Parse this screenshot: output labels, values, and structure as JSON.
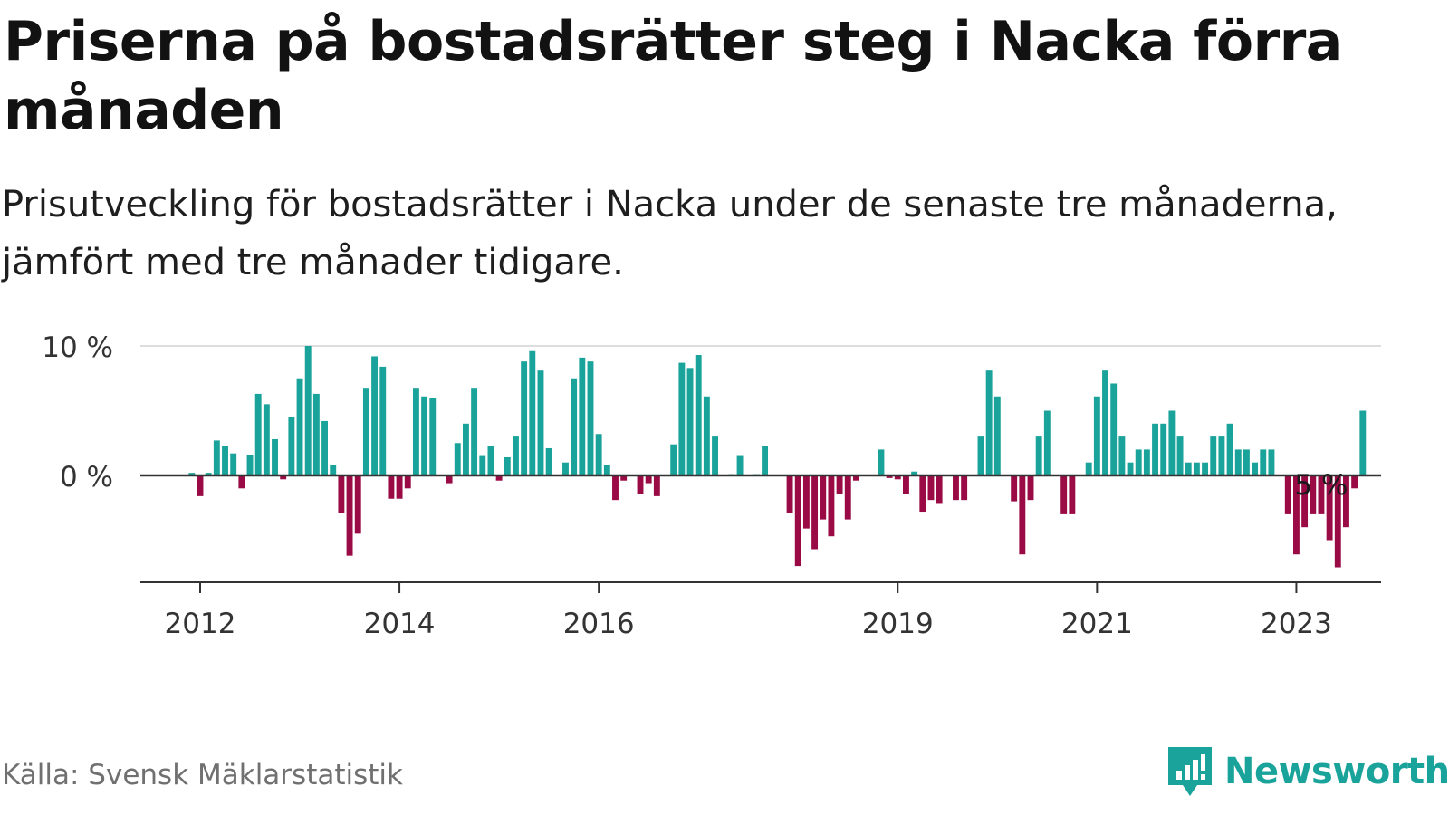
{
  "title": "Priserna på bostadsrätter steg i Nacka förra månaden",
  "subtitle": "Prisutveckling för bostadsrätter i Nacka under de senaste tre månaderna, jämfört med tre månader tidigare.",
  "source": "Källa: Svensk Mäklarstatistik",
  "brand": "Newsworthy",
  "colors": {
    "positive": "#1aa39a",
    "negative": "#9a0b46",
    "axis": "#333333",
    "grid": "#dddddd",
    "brand": "#1aa39a"
  },
  "chart_data": {
    "type": "bar",
    "title": "Priserna på bostadsrätter steg i Nacka förra månaden",
    "ylabel": "",
    "xlabel": "",
    "ylim": [
      -8,
      10
    ],
    "yticks": [
      {
        "value": 0,
        "label": "0 %"
      },
      {
        "value": 10,
        "label": "10 %"
      }
    ],
    "xticks": [
      {
        "index": 0,
        "label": "2012"
      },
      {
        "index": 24,
        "label": "2014"
      },
      {
        "index": 48,
        "label": "2016"
      },
      {
        "index": 84,
        "label": "2019"
      },
      {
        "index": 108,
        "label": "2021"
      },
      {
        "index": 132,
        "label": "2023"
      }
    ],
    "first_index": -1,
    "values": [
      0.2,
      -1.6,
      0.2,
      2.7,
      2.3,
      1.7,
      -1.0,
      1.6,
      6.3,
      5.5,
      2.8,
      -0.3,
      4.5,
      7.5,
      10.0,
      6.3,
      4.2,
      0.8,
      -2.9,
      -6.2,
      -4.5,
      6.7,
      9.2,
      8.4,
      -1.8,
      -1.8,
      -1.0,
      6.7,
      6.1,
      6.0,
      0.0,
      -0.6,
      2.5,
      4.0,
      6.7,
      1.5,
      2.3,
      -0.4,
      1.4,
      3.0,
      8.8,
      9.6,
      8.1,
      2.1,
      0.0,
      1.0,
      7.5,
      9.1,
      8.8,
      3.2,
      0.8,
      -1.9,
      -0.4,
      0.0,
      -1.4,
      -0.6,
      -1.6,
      0.0,
      2.4,
      8.7,
      8.3,
      9.3,
      6.1,
      3.0,
      0.0,
      0.1,
      1.5,
      0.0,
      0.1,
      2.3,
      0.0,
      0.0,
      -2.9,
      -7.0,
      -4.1,
      -5.7,
      -3.4,
      -4.7,
      -1.4,
      -3.4,
      -0.4,
      0.0,
      0.0,
      2.0,
      -0.2,
      -0.3,
      -1.4,
      0.3,
      -2.8,
      -1.9,
      -2.2,
      0.0,
      -1.9,
      -1.9,
      0.0,
      3.0,
      8.1,
      6.1,
      0.0,
      -2.0,
      -6.1,
      -1.9,
      3.0,
      5.0,
      0.0,
      -3.0,
      -3.0,
      0.0,
      1.0,
      6.1,
      8.1,
      7.1,
      3.0,
      1.0,
      2.0,
      2.0,
      4.0,
      4.0,
      5.0,
      3.0,
      1.0,
      1.0,
      1.0,
      3.0,
      3.0,
      4.0,
      2.0,
      2.0,
      1.0,
      2.0,
      2.0,
      0.0,
      -3.0,
      -6.1,
      -4.0,
      -3.0,
      -3.0,
      -5.0,
      -7.1,
      -4.0,
      -1.0,
      5.0
    ],
    "annotation": {
      "text": "5 %",
      "index": 135
    }
  }
}
